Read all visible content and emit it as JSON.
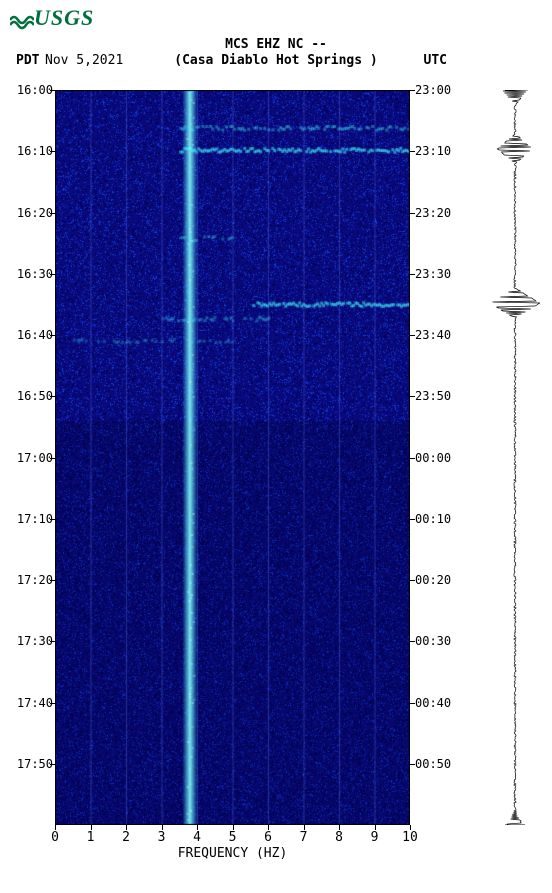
{
  "logo_text": "USGS",
  "title": "MCS EHZ NC --",
  "subtitle": "(Casa Diablo Hot Springs )",
  "left_tz": "PDT",
  "right_tz": "UTC",
  "date": "Nov 5,2021",
  "xlabel": "FREQUENCY (HZ)",
  "plot": {
    "type": "spectrogram",
    "x_range": [
      0,
      10
    ],
    "x_ticks": [
      0,
      1,
      2,
      3,
      4,
      5,
      6,
      7,
      8,
      9,
      10
    ],
    "y_left": [
      "16:00",
      "16:10",
      "16:20",
      "16:30",
      "16:40",
      "16:50",
      "17:00",
      "17:10",
      "17:20",
      "17:30",
      "17:40",
      "17:50"
    ],
    "y_right": [
      "23:00",
      "23:10",
      "23:20",
      "23:30",
      "23:40",
      "23:50",
      "00:00",
      "00:10",
      "00:20",
      "00:30",
      "00:40",
      "00:50"
    ],
    "background_color": "#0a0a80",
    "highlight_color": "#40ffff",
    "mid_color": "#1040e0",
    "low_color": "#000050",
    "grid_color": "#6080ff",
    "vertical_band_freq": 3.7,
    "band_width": 0.2,
    "features": [
      {
        "type": "hband",
        "time_frac": 0.05,
        "from": 3.5,
        "to": 10,
        "intensity": 0.6
      },
      {
        "type": "hband",
        "time_frac": 0.08,
        "from": 3.5,
        "to": 10,
        "intensity": 0.9
      },
      {
        "type": "hband",
        "time_frac": 0.2,
        "from": 3.5,
        "to": 5,
        "intensity": 0.5
      },
      {
        "type": "hband",
        "time_frac": 0.29,
        "from": 5.5,
        "to": 10,
        "intensity": 0.9
      },
      {
        "type": "hband",
        "time_frac": 0.31,
        "from": 3.0,
        "to": 6,
        "intensity": 0.5
      },
      {
        "type": "hband",
        "time_frac": 0.34,
        "from": 0.5,
        "to": 5,
        "intensity": 0.4
      }
    ],
    "seismo_events": [
      {
        "time_frac": 0.0,
        "amp": 0.5
      },
      {
        "time_frac": 0.08,
        "amp": 0.7
      },
      {
        "time_frac": 0.29,
        "amp": 1.0
      },
      {
        "time_frac": 1.0,
        "amp": 0.3
      }
    ]
  },
  "colors": {
    "logo_green": "#00703c",
    "text": "#000000",
    "page_bg": "#ffffff"
  },
  "fonts": {
    "mono_size": 13,
    "logo_size": 22
  }
}
